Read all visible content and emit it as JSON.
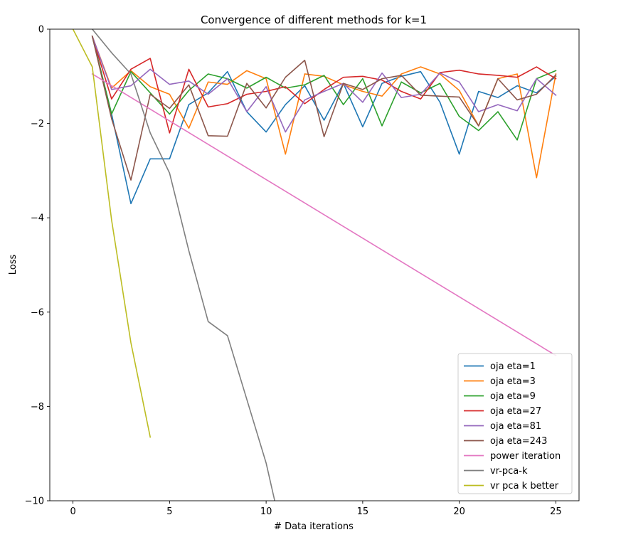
{
  "chart_data": {
    "type": "line",
    "title": "Convergence of different methods for k=1",
    "xlabel": "# Data iterations",
    "ylabel": "Loss",
    "xlim": [
      -1.2,
      26.2
    ],
    "ylim": [
      -10,
      0
    ],
    "xticks": [
      0,
      5,
      10,
      15,
      20,
      25
    ],
    "yticks": [
      0,
      -2,
      -4,
      -6,
      -8,
      -10
    ],
    "xtick_labels": [
      "0",
      "5",
      "10",
      "15",
      "20",
      "25"
    ],
    "ytick_labels": [
      "0",
      "−2",
      "−4",
      "−6",
      "−8",
      "−10"
    ],
    "grid": false,
    "legend_position": "lower-right",
    "series": [
      {
        "name": "oja eta=1",
        "color": "#1f77b4",
        "x": [
          1,
          2,
          3,
          4,
          5,
          6,
          7,
          8,
          9,
          10,
          11,
          12,
          13,
          14,
          15,
          16,
          17,
          18,
          19,
          20,
          21,
          22,
          23,
          24,
          25
        ],
        "y": [
          -0.15,
          -1.8,
          -3.7,
          -2.75,
          -2.75,
          -1.6,
          -1.35,
          -0.9,
          -1.75,
          -2.18,
          -1.6,
          -1.2,
          -1.93,
          -1.15,
          -2.07,
          -1.15,
          -1.0,
          -0.9,
          -1.55,
          -2.65,
          -1.32,
          -1.45,
          -1.2,
          -1.35,
          -1.0
        ]
      },
      {
        "name": "oja eta=3",
        "color": "#ff7f0e",
        "x": [
          1,
          2,
          3,
          4,
          5,
          6,
          7,
          8,
          9,
          10,
          11,
          12,
          13,
          14,
          15,
          16,
          17,
          18,
          19,
          20,
          21,
          22,
          23,
          24,
          25
        ],
        "y": [
          -0.15,
          -1.25,
          -0.88,
          -1.22,
          -1.38,
          -2.1,
          -1.12,
          -1.17,
          -0.88,
          -1.05,
          -2.65,
          -0.95,
          -1.0,
          -1.18,
          -1.32,
          -1.42,
          -0.95,
          -0.8,
          -0.95,
          -1.3,
          -2.05,
          -1.05,
          -0.95,
          -3.15,
          -0.95
        ]
      },
      {
        "name": "oja eta=9",
        "color": "#2ca02c",
        "x": [
          1,
          2,
          3,
          4,
          5,
          6,
          7,
          8,
          9,
          10,
          11,
          12,
          13,
          14,
          15,
          16,
          17,
          18,
          19,
          20,
          21,
          22,
          23,
          24,
          25
        ],
        "y": [
          -0.15,
          -1.8,
          -0.9,
          -1.35,
          -1.8,
          -1.3,
          -0.95,
          -1.05,
          -1.25,
          -1.02,
          -1.25,
          -1.18,
          -0.98,
          -1.6,
          -1.05,
          -2.05,
          -1.12,
          -1.35,
          -1.15,
          -1.85,
          -2.15,
          -1.75,
          -2.35,
          -1.05,
          -0.88
        ]
      },
      {
        "name": "oja eta=27",
        "color": "#d62728",
        "x": [
          1,
          2,
          3,
          4,
          5,
          6,
          7,
          8,
          9,
          10,
          11,
          12,
          13,
          14,
          15,
          16,
          17,
          18,
          19,
          20,
          21,
          22,
          23,
          24,
          25
        ],
        "y": [
          -0.15,
          -1.48,
          -0.85,
          -0.62,
          -2.2,
          -0.85,
          -1.65,
          -1.58,
          -1.38,
          -1.32,
          -1.22,
          -1.58,
          -1.28,
          -1.02,
          -1.0,
          -1.08,
          -1.32,
          -1.48,
          -0.92,
          -0.87,
          -0.95,
          -0.98,
          -1.02,
          -0.8,
          -1.05
        ]
      },
      {
        "name": "oja eta=81",
        "color": "#9467bd",
        "x": [
          1,
          2,
          3,
          4,
          5,
          6,
          7,
          8,
          9,
          10,
          11,
          12,
          13,
          14,
          15,
          16,
          17,
          18,
          19,
          20,
          21,
          22,
          23,
          24,
          25
        ],
        "y": [
          -0.15,
          -1.28,
          -1.2,
          -0.85,
          -1.17,
          -1.1,
          -1.38,
          -1.05,
          -1.75,
          -1.22,
          -2.18,
          -1.5,
          -1.32,
          -1.15,
          -1.55,
          -0.93,
          -1.45,
          -1.38,
          -0.93,
          -1.12,
          -1.75,
          -1.6,
          -1.73,
          -1.05,
          -1.4
        ]
      },
      {
        "name": "oja eta=243",
        "color": "#8c564b",
        "x": [
          1,
          2,
          3,
          4,
          5,
          6,
          7,
          8,
          9,
          10,
          11,
          12,
          13,
          14,
          15,
          16,
          17,
          18,
          19,
          20,
          21,
          22,
          23,
          24,
          25
        ],
        "y": [
          -0.15,
          -1.9,
          -3.2,
          -1.38,
          -1.68,
          -1.18,
          -2.26,
          -2.27,
          -1.15,
          -1.67,
          -1.02,
          -0.66,
          -2.28,
          -1.15,
          -1.28,
          -1.05,
          -0.98,
          -1.4,
          -1.42,
          -1.44,
          -2.05,
          -1.05,
          -1.5,
          -1.38,
          -0.97
        ]
      },
      {
        "name": "power iteration",
        "color": "#e377c2",
        "x": [
          1,
          25
        ],
        "y": [
          -0.95,
          -6.92
        ]
      },
      {
        "name": "vr-pca-k",
        "color": "#7f7f7f",
        "x": [
          1,
          2,
          3,
          4,
          5,
          6,
          7,
          8,
          9,
          10,
          11
        ],
        "y": [
          0.0,
          -0.5,
          -0.95,
          -2.2,
          -3.05,
          -4.7,
          -6.2,
          -6.5,
          -7.85,
          -9.2,
          -11.0
        ]
      },
      {
        "name": "vr pca k better",
        "color": "#bcbd22",
        "x": [
          0,
          1,
          2,
          3,
          4
        ],
        "y": [
          0.0,
          -0.8,
          -4.05,
          -6.65,
          -8.65
        ]
      }
    ]
  }
}
